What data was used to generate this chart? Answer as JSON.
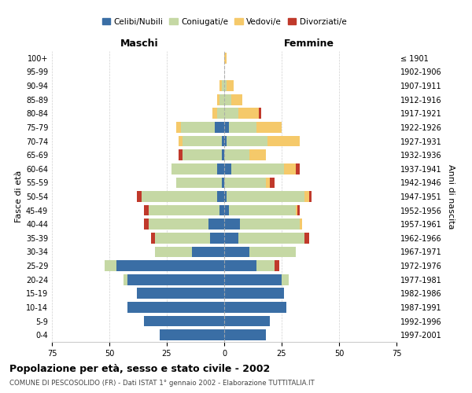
{
  "age_groups": [
    "0-4",
    "5-9",
    "10-14",
    "15-19",
    "20-24",
    "25-29",
    "30-34",
    "35-39",
    "40-44",
    "45-49",
    "50-54",
    "55-59",
    "60-64",
    "65-69",
    "70-74",
    "75-79",
    "80-84",
    "85-89",
    "90-94",
    "95-99",
    "100+"
  ],
  "birth_years": [
    "1997-2001",
    "1992-1996",
    "1987-1991",
    "1982-1986",
    "1977-1981",
    "1972-1976",
    "1967-1971",
    "1962-1966",
    "1957-1961",
    "1952-1956",
    "1947-1951",
    "1942-1946",
    "1937-1941",
    "1932-1936",
    "1927-1931",
    "1922-1926",
    "1917-1921",
    "1912-1916",
    "1907-1911",
    "1902-1906",
    "≤ 1901"
  ],
  "maschi": {
    "celibe": [
      28,
      35,
      42,
      38,
      42,
      47,
      14,
      6,
      7,
      2,
      3,
      1,
      3,
      1,
      1,
      4,
      0,
      0,
      0,
      0,
      0
    ],
    "coniugato": [
      0,
      0,
      0,
      0,
      2,
      5,
      16,
      24,
      26,
      31,
      33,
      20,
      20,
      17,
      17,
      15,
      3,
      2,
      1,
      0,
      0
    ],
    "vedovo": [
      0,
      0,
      0,
      0,
      0,
      0,
      0,
      0,
      0,
      0,
      0,
      0,
      0,
      0,
      2,
      2,
      2,
      1,
      1,
      0,
      0
    ],
    "divorziato": [
      0,
      0,
      0,
      0,
      0,
      0,
      0,
      2,
      2,
      2,
      2,
      0,
      0,
      2,
      0,
      0,
      0,
      0,
      0,
      0,
      0
    ]
  },
  "femmine": {
    "nubile": [
      18,
      20,
      27,
      26,
      25,
      14,
      11,
      6,
      7,
      2,
      1,
      0,
      3,
      0,
      1,
      2,
      0,
      0,
      0,
      0,
      0
    ],
    "coniugata": [
      0,
      0,
      0,
      0,
      3,
      8,
      20,
      29,
      26,
      29,
      34,
      18,
      23,
      11,
      18,
      12,
      6,
      3,
      1,
      0,
      0
    ],
    "vedova": [
      0,
      0,
      0,
      0,
      0,
      0,
      0,
      0,
      1,
      1,
      2,
      2,
      5,
      7,
      14,
      11,
      9,
      5,
      3,
      0,
      1
    ],
    "divorziata": [
      0,
      0,
      0,
      0,
      0,
      2,
      0,
      2,
      0,
      1,
      1,
      2,
      2,
      0,
      0,
      0,
      1,
      0,
      0,
      0,
      0
    ]
  },
  "colors": {
    "celibe": "#3a6ea5",
    "coniugato": "#c5d8a4",
    "vedovo": "#f5c96a",
    "divorziato": "#c0392b"
  },
  "xlim": 75,
  "title": "Popolazione per età, sesso e stato civile - 2002",
  "subtitle": "COMUNE DI PESCOSOLIDO (FR) - Dati ISTAT 1° gennaio 2002 - Elaborazione TUTTITALIA.IT",
  "ylabel_left": "Fasce di età",
  "ylabel_right": "Anni di nascita",
  "xlabel_left": "Maschi",
  "xlabel_right": "Femmine",
  "legend_labels": [
    "Celibi/Nubili",
    "Coniugati/e",
    "Vedovi/e",
    "Divorziati/e"
  ],
  "background_color": "#ffffff",
  "grid_color": "#cccccc"
}
